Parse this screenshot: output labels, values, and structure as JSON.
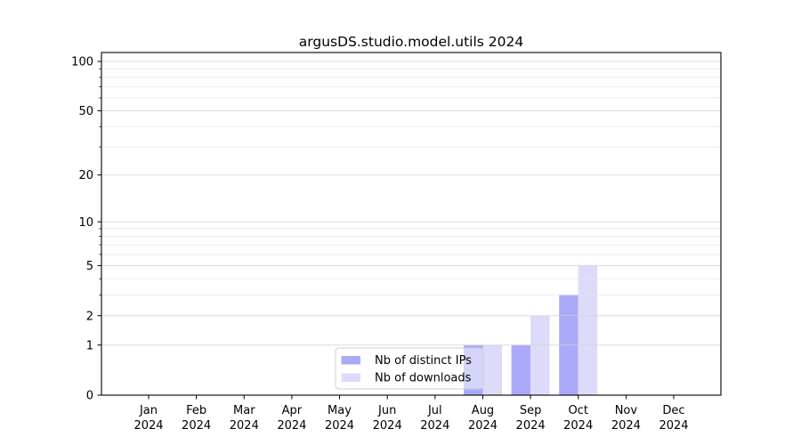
{
  "title": "argusDS.studio.model.utils 2024",
  "chart_data": {
    "type": "bar",
    "title": "argusDS.studio.model.utils 2024",
    "x_months": [
      "Jan",
      "Feb",
      "Mar",
      "Apr",
      "May",
      "Jun",
      "Jul",
      "Aug",
      "Sep",
      "Oct",
      "Nov",
      "Dec"
    ],
    "x_year": "2024",
    "categories": [
      "Jan 2024",
      "Feb 2024",
      "Mar 2024",
      "Apr 2024",
      "May 2024",
      "Jun 2024",
      "Jul 2024",
      "Aug 2024",
      "Sep 2024",
      "Oct 2024",
      "Nov 2024",
      "Dec 2024"
    ],
    "series": [
      {
        "name": "Nb of distinct IPs",
        "color": "#aaaaf8",
        "values": [
          0,
          0,
          0,
          0,
          0,
          0,
          0,
          1,
          1,
          3,
          0,
          0
        ]
      },
      {
        "name": "Nb of downloads",
        "color": "#dcdcfa",
        "values": [
          0,
          0,
          0,
          0,
          0,
          0,
          0,
          1,
          2,
          5,
          0,
          0
        ]
      }
    ],
    "yscale": "log1p",
    "ylim": [
      0,
      113
    ],
    "y_major_ticks": [
      0,
      1,
      2,
      5,
      10,
      20,
      50,
      100
    ],
    "y_minor_gridlines": [
      3,
      4,
      6,
      7,
      8,
      9,
      30,
      40,
      60,
      70,
      80,
      90
    ],
    "grid": "horizontal",
    "legend_position": "lower center",
    "xlabel": "",
    "ylabel": ""
  },
  "legend": {
    "items": [
      {
        "label": "Nb of distinct IPs",
        "color": "#aaaaf8"
      },
      {
        "label": "Nb of downloads",
        "color": "#dcdcfa"
      }
    ]
  },
  "colors": {
    "background": "#ffffff",
    "bar_distinct_ips": "#aaaaf8",
    "bar_downloads": "#dcdcfa",
    "grid_major": "#d0d0d0",
    "grid_minor": "#e6e6e6",
    "spine": "#000000",
    "legend_border": "#cccccc",
    "text": "#000000"
  }
}
